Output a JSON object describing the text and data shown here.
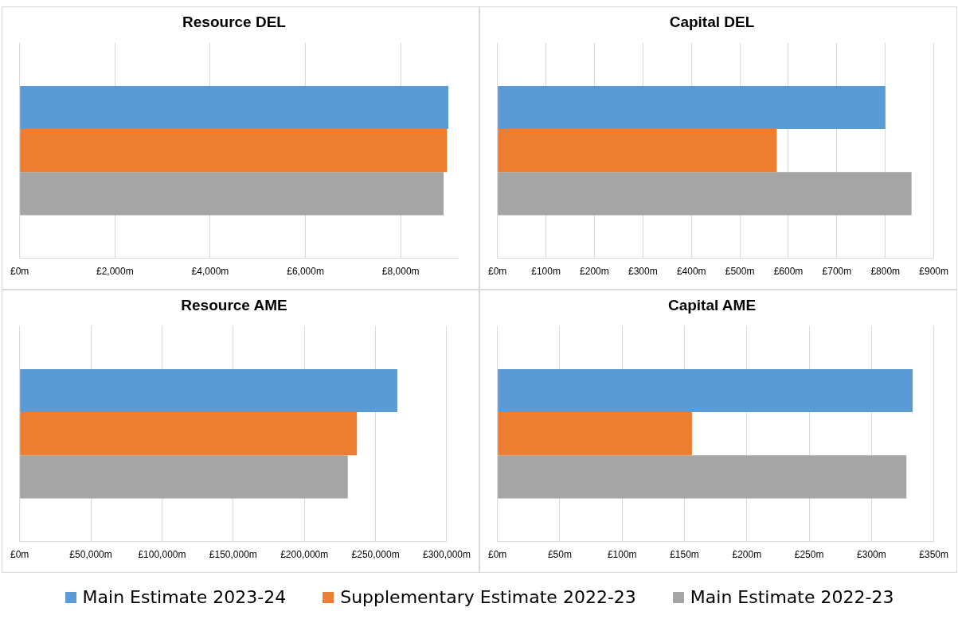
{
  "chart_data": [
    {
      "type": "bar",
      "orientation": "horizontal",
      "title": "Resource DEL",
      "categories": [
        null
      ],
      "legend": "bottom",
      "grid": "x",
      "xlim": [
        0,
        9200
      ],
      "xticks": [
        {
          "value": 0,
          "label": "£0m"
        },
        {
          "value": 2000,
          "label": "£2,000m"
        },
        {
          "value": 4000,
          "label": "£4,000m"
        },
        {
          "value": 6000,
          "label": "£6,000m"
        },
        {
          "value": 8000,
          "label": "£8,000m"
        }
      ],
      "series": [
        {
          "name": "Main Estimate 2023-24",
          "color": "#5b9bd5",
          "values": [
            9000
          ]
        },
        {
          "name": "Supplementary Estimate 2022-23",
          "color": "#ed7d31",
          "values": [
            8970
          ]
        },
        {
          "name": "Main Estimate 2022-23",
          "color": "#a5a5a5",
          "values": [
            8900
          ]
        }
      ]
    },
    {
      "type": "bar",
      "orientation": "horizontal",
      "title": "Capital DEL",
      "categories": [
        null
      ],
      "grid": "x",
      "xlim": [
        0,
        900
      ],
      "xticks": [
        {
          "value": 0,
          "label": "£0m"
        },
        {
          "value": 100,
          "label": "£100m"
        },
        {
          "value": 200,
          "label": "£200m"
        },
        {
          "value": 300,
          "label": "£300m"
        },
        {
          "value": 400,
          "label": "£400m"
        },
        {
          "value": 500,
          "label": "£500m"
        },
        {
          "value": 600,
          "label": "£600m"
        },
        {
          "value": 700,
          "label": "£700m"
        },
        {
          "value": 800,
          "label": "£800m"
        },
        {
          "value": 900,
          "label": "£900m"
        }
      ],
      "series": [
        {
          "color": "#5b9bd5",
          "values": [
            800
          ]
        },
        {
          "color": "#ed7d31",
          "values": [
            576
          ]
        },
        {
          "color": "#a5a5a5",
          "values": [
            854
          ]
        }
      ]
    },
    {
      "type": "bar",
      "orientation": "horizontal",
      "title": "Resource AME",
      "categories": [
        null
      ],
      "grid": "x",
      "xlim": [
        0,
        300000
      ],
      "xticks": [
        {
          "value": 0,
          "label": "£0m"
        },
        {
          "value": 50000,
          "label": "£50,000m"
        },
        {
          "value": 100000,
          "label": "£100,000m"
        },
        {
          "value": 150000,
          "label": "£150,000m"
        },
        {
          "value": 200000,
          "label": "£200,000m"
        },
        {
          "value": 250000,
          "label": "£250,000m"
        },
        {
          "value": 300000,
          "label": "£300,000m"
        }
      ],
      "series": [
        {
          "color": "#5b9bd5",
          "values": [
            265300
          ]
        },
        {
          "color": "#ed7d31",
          "values": [
            236900
          ]
        },
        {
          "color": "#a5a5a5",
          "values": [
            230500
          ]
        }
      ]
    },
    {
      "type": "bar",
      "orientation": "horizontal",
      "title": "Capital AME",
      "categories": [
        null
      ],
      "grid": "x",
      "xlim": [
        0,
        350
      ],
      "xticks": [
        {
          "value": 0,
          "label": "£0m"
        },
        {
          "value": 50,
          "label": "£50m"
        },
        {
          "value": 100,
          "label": "£100m"
        },
        {
          "value": 150,
          "label": "£150m"
        },
        {
          "value": 200,
          "label": "£200m"
        },
        {
          "value": 250,
          "label": "£250m"
        },
        {
          "value": 300,
          "label": "£300m"
        },
        {
          "value": 350,
          "label": "£350m"
        }
      ],
      "series": [
        {
          "color": "#5b9bd5",
          "values": [
            333
          ]
        },
        {
          "color": "#ed7d31",
          "values": [
            156
          ]
        },
        {
          "color": "#a5a5a5",
          "values": [
            328
          ]
        }
      ]
    }
  ]
}
